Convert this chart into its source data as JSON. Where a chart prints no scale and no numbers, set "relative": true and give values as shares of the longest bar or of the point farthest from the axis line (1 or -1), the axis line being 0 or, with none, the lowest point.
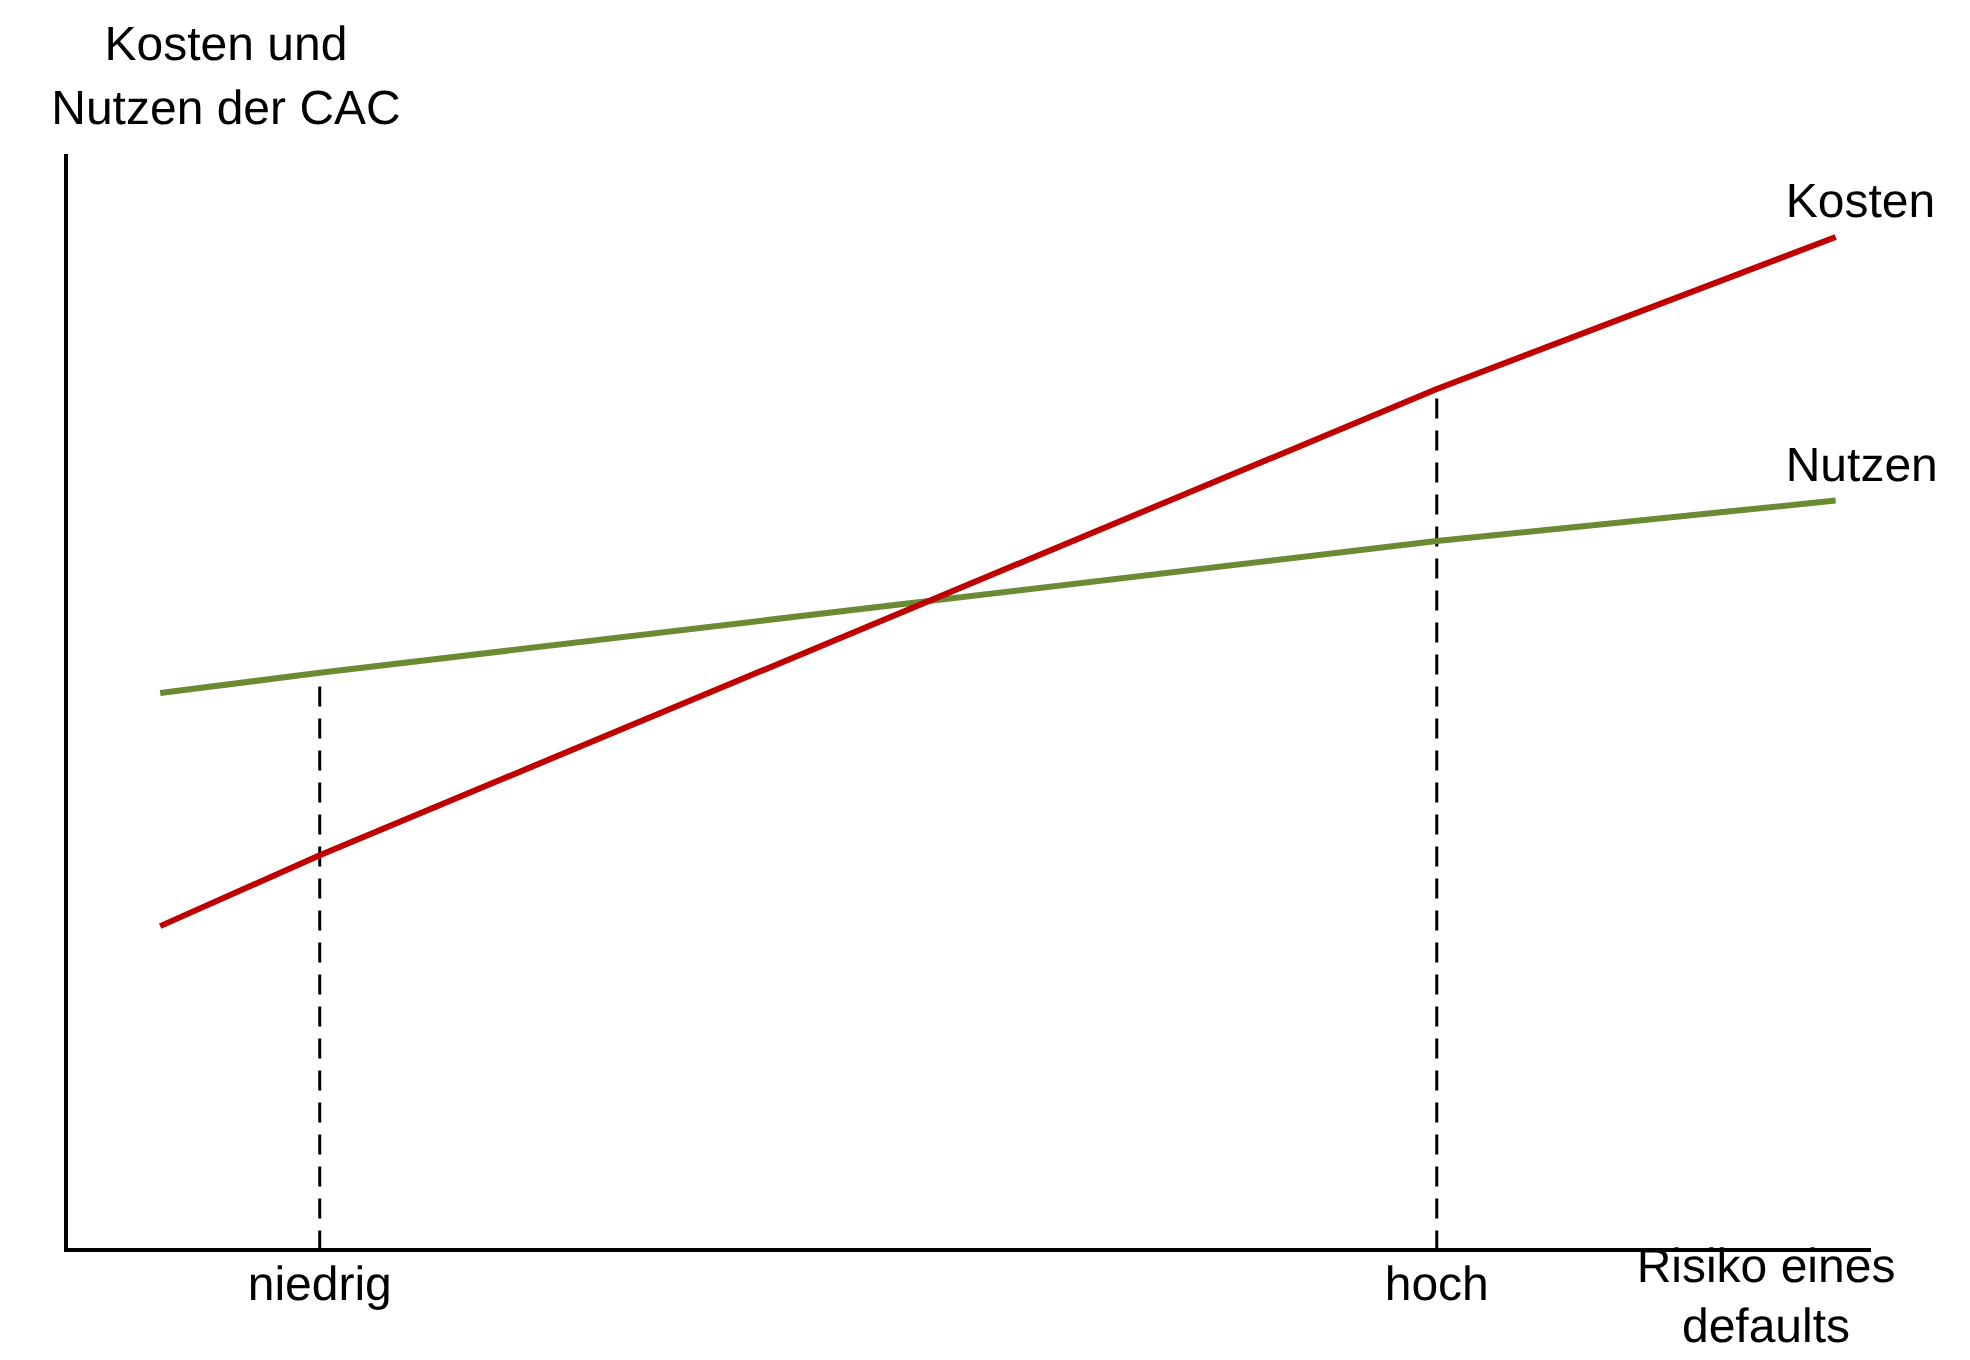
{
  "chart_data": {
    "type": "line",
    "relative": true,
    "ylabel": "Kosten und Nutzen der CAC",
    "xlabel": "Risiko eines defaults",
    "categories": [
      null,
      null,
      "niedrig",
      null,
      null,
      null,
      null,
      null,
      null,
      null,
      null,
      null,
      null,
      null,
      null,
      null,
      "hoch",
      null,
      null,
      null,
      null,
      null
    ],
    "series": [
      {
        "name": "Kosten",
        "color": "#c00000",
        "values": [
          0.32,
          null,
          0.39,
          null,
          null,
          null,
          null,
          null,
          null,
          null,
          null,
          null,
          null,
          null,
          null,
          null,
          0.85,
          null,
          null,
          null,
          null,
          1
        ]
      },
      {
        "name": "Nutzen",
        "color": "#6b8a34",
        "values": [
          0.55,
          null,
          0.57,
          null,
          null,
          null,
          null,
          null,
          null,
          null,
          null,
          null,
          null,
          null,
          null,
          null,
          0.7,
          null,
          null,
          null,
          null,
          0.74
        ]
      }
    ],
    "ref_lines": [
      {
        "axis": "x",
        "value": "niedrig",
        "color": "#000000",
        "line_style": "dashed"
      },
      {
        "axis": "x",
        "value": "hoch",
        "color": "#000000",
        "line_style": "dashed"
      }
    ],
    "legend": false,
    "grid": false,
    "marker": "none",
    "line_style": "solid"
  }
}
